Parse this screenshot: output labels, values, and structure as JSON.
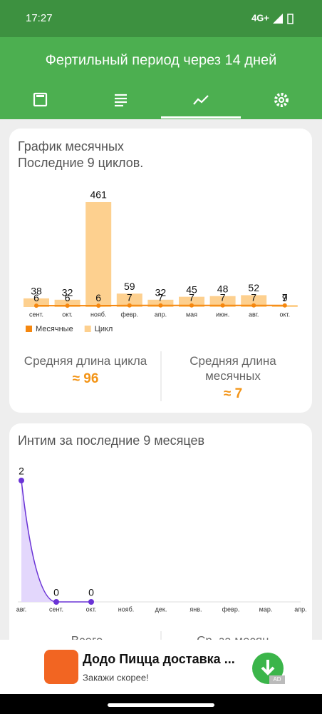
{
  "status_bar": {
    "time": "17:27",
    "network": "4G+"
  },
  "header": {
    "title": "Фертильный период через 14 дней"
  },
  "cycle_card": {
    "chart_data": {
      "type": "bar",
      "title": "График месячных",
      "subtitle": "Последние 9 циклов.",
      "categories": [
        "сент.",
        "окт.",
        "нояб.",
        "февр.",
        "апр.",
        "мая",
        "июн.",
        "авг.",
        "окт."
      ],
      "series": [
        {
          "name": "Месячные",
          "color": "#f5870f",
          "type": "line",
          "values": [
            6,
            6,
            6,
            7,
            7,
            7,
            7,
            7,
            7
          ]
        },
        {
          "name": "Цикл",
          "color": "#fdd08f",
          "type": "bar",
          "values": [
            38,
            32,
            461,
            59,
            32,
            45,
            48,
            52,
            9
          ]
        }
      ]
    },
    "stats": [
      {
        "label": "Средняя длина цикла",
        "value": "≈ 96"
      },
      {
        "label": "Средняя длина месячных",
        "value": "≈ 7"
      }
    ]
  },
  "intim_card": {
    "chart_data": {
      "type": "area",
      "title": "Интим за последние 9 месяцев",
      "categories": [
        "авг.",
        "сент.",
        "окт.",
        "нояб.",
        "дек.",
        "янв.",
        "февр.",
        "мар.",
        "апр."
      ],
      "series": [
        {
          "color": "#6a33d6",
          "fill": "#e3d7fc",
          "values": [
            2,
            0,
            0,
            null,
            null,
            null,
            null,
            null,
            null
          ]
        }
      ]
    },
    "stats": [
      {
        "label": "Всего"
      },
      {
        "label": "Ср. за месяц"
      }
    ]
  },
  "ad": {
    "title": "Додо Пицца доставка ...",
    "subtitle": "Закажи скорее!",
    "badge": "AD"
  }
}
